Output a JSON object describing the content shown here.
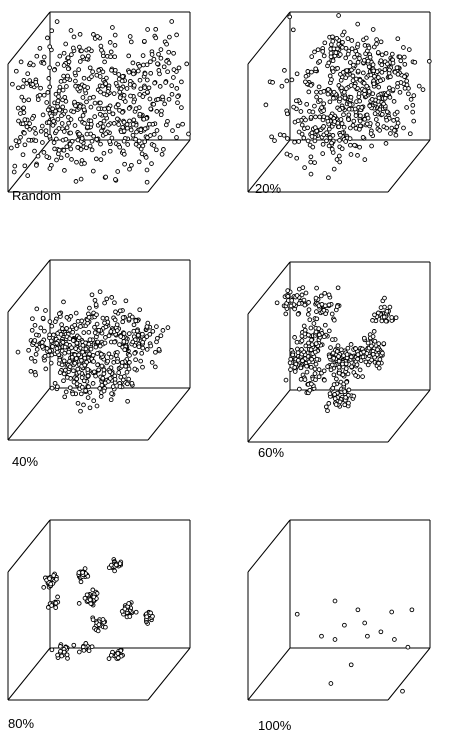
{
  "chart_data": [
    {
      "type": "scatter",
      "label": "Random",
      "marker": "open-circle",
      "approx_points": 600,
      "structure": "uniform",
      "seed": 11
    },
    {
      "type": "scatter",
      "label": "20%",
      "marker": "open-circle",
      "approx_points": 560,
      "structure": "clusters",
      "seed": 23,
      "clusters": [
        [
          0.5,
          0.45,
          0.5,
          0.18,
          130
        ],
        [
          0.75,
          0.55,
          0.5,
          0.14,
          110
        ],
        [
          0.4,
          0.7,
          0.6,
          0.14,
          90
        ],
        [
          0.6,
          0.25,
          0.5,
          0.12,
          70
        ],
        [
          0.8,
          0.3,
          0.4,
          0.1,
          60
        ],
        [
          0.45,
          0.1,
          0.5,
          0.06,
          25
        ],
        [
          0.45,
          0.38,
          0.3,
          0.22,
          75
        ]
      ]
    },
    {
      "type": "scatter",
      "label": "40%",
      "marker": "open-circle",
      "approx_points": 540,
      "structure": "clusters",
      "seed": 37,
      "clusters": [
        [
          0.2,
          0.42,
          0.5,
          0.1,
          110
        ],
        [
          0.5,
          0.38,
          0.5,
          0.11,
          140
        ],
        [
          0.78,
          0.45,
          0.5,
          0.09,
          90
        ],
        [
          0.38,
          0.7,
          0.5,
          0.09,
          90
        ],
        [
          0.62,
          0.72,
          0.5,
          0.07,
          60
        ],
        [
          0.35,
          0.55,
          0.5,
          0.06,
          50
        ]
      ]
    },
    {
      "type": "scatter",
      "label": "60%",
      "marker": "open-circle",
      "approx_points": 460,
      "structure": "clusters",
      "seed": 41,
      "clusters": [
        [
          0.18,
          0.12,
          0.5,
          0.05,
          35
        ],
        [
          0.38,
          0.15,
          0.5,
          0.06,
          45
        ],
        [
          0.35,
          0.38,
          0.5,
          0.06,
          55
        ],
        [
          0.25,
          0.55,
          0.5,
          0.06,
          70
        ],
        [
          0.5,
          0.58,
          0.5,
          0.07,
          80
        ],
        [
          0.82,
          0.2,
          0.5,
          0.04,
          30
        ],
        [
          0.72,
          0.5,
          0.5,
          0.06,
          80
        ],
        [
          0.52,
          0.85,
          0.5,
          0.05,
          45
        ],
        [
          0.3,
          0.75,
          0.5,
          0.04,
          20
        ]
      ]
    },
    {
      "type": "scatter",
      "label": "80%",
      "marker": "open-circle",
      "approx_points": 260,
      "structure": "clusters",
      "seed": 53,
      "clusters": [
        [
          0.16,
          0.28,
          0.5,
          0.025,
          25
        ],
        [
          0.38,
          0.22,
          0.5,
          0.025,
          25
        ],
        [
          0.62,
          0.15,
          0.5,
          0.02,
          20
        ],
        [
          0.18,
          0.45,
          0.5,
          0.02,
          15
        ],
        [
          0.45,
          0.4,
          0.5,
          0.03,
          30
        ],
        [
          0.7,
          0.5,
          0.5,
          0.025,
          25
        ],
        [
          0.85,
          0.55,
          0.5,
          0.02,
          20
        ],
        [
          0.5,
          0.62,
          0.5,
          0.025,
          25
        ],
        [
          0.25,
          0.82,
          0.5,
          0.025,
          25
        ],
        [
          0.4,
          0.8,
          0.5,
          0.02,
          15
        ],
        [
          0.62,
          0.86,
          0.5,
          0.025,
          20
        ]
      ]
    },
    {
      "type": "scatter",
      "label": "100%",
      "marker": "open-circle",
      "approx_points": 16,
      "structure": "sparse",
      "points": [
        [
          0.1,
          0.22
        ],
        [
          0.38,
          0.1
        ],
        [
          0.55,
          0.18
        ],
        [
          0.8,
          0.2
        ],
        [
          0.95,
          0.18
        ],
        [
          0.45,
          0.32
        ],
        [
          0.6,
          0.3
        ],
        [
          0.28,
          0.42
        ],
        [
          0.38,
          0.45
        ],
        [
          0.62,
          0.42
        ],
        [
          0.72,
          0.38
        ],
        [
          0.82,
          0.45
        ],
        [
          0.92,
          0.52
        ],
        [
          0.5,
          0.68
        ],
        [
          0.35,
          0.85
        ],
        [
          0.88,
          0.92
        ]
      ]
    }
  ]
}
